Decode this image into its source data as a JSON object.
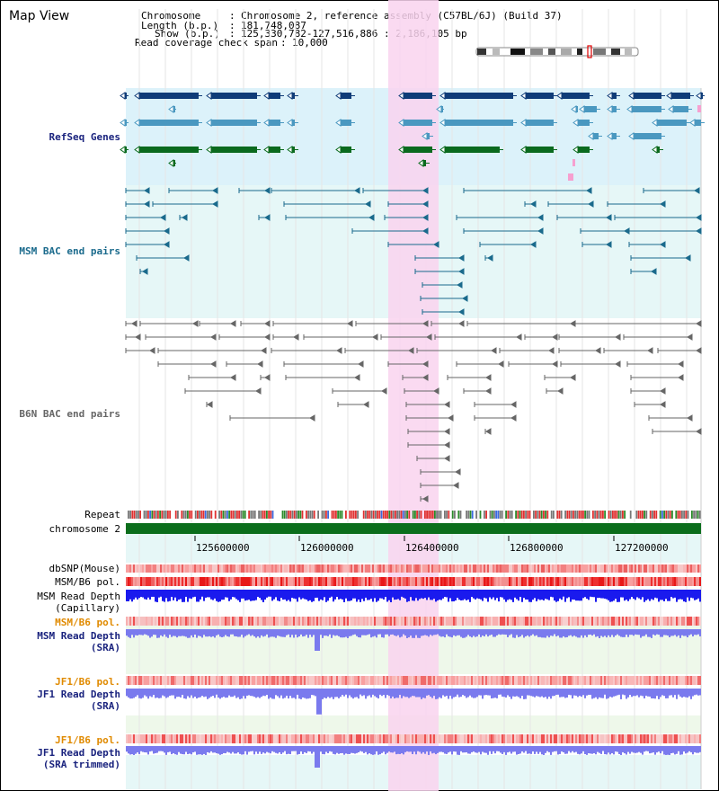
{
  "header": {
    "title": "Map View",
    "chromosome_label": "Chromosome",
    "chromosome_value": "Chromosome 2, reference assembly (C57BL/6J) (Build 37)",
    "length_label": "Length (b.p.)",
    "length_value": "181,748,087",
    "show_label": "Show (b.p.)",
    "show_value": "125,330,782-127,516,886 : 2,186,105 bp",
    "coverage_label": "Read coverage check span",
    "coverage_value": "10,000"
  },
  "tracks": {
    "refseq": "RefSeq Genes",
    "msm_bac": "MSM BAC end pairs",
    "b6n_bac": "B6N BAC end pairs",
    "repeat": "Repeat",
    "chromosome": "chromosome 2",
    "dbsnp": "dbSNP(Mouse)",
    "msm_b6_pol": "MSM/B6 pol.",
    "msm_depth_cap_1": "MSM Read Depth",
    "msm_depth_cap_2": "(Capillary)",
    "msm_b6_pol_sra": "MSM/B6 pol.",
    "msm_depth_sra_1": "MSM Read Depth",
    "msm_depth_sra_2": "(SRA)",
    "jf1_b6_pol": "JF1/B6 pol.",
    "jf1_depth_1": "JF1 Read Depth",
    "jf1_depth_2": "(SRA)",
    "jf1_b6_pol_trim": "JF1/B6 pol.",
    "jf1_depth_trim_1": "JF1 Read Depth",
    "jf1_depth_trim_2": "(SRA trimmed)"
  },
  "axis": {
    "ticks": [
      "125600000",
      "126000000",
      "126400000",
      "126800000",
      "127200000"
    ]
  },
  "colors": {
    "refseq_bg": "#dcf2fa",
    "track_bg": "#e6f7f7",
    "highlight": "#f9d4ee",
    "dark_blue": "#0f3c78",
    "mid_blue": "#4a98c0",
    "green": "#0a6a1e",
    "bac_teal": "#1a6a8c",
    "b6n_gray": "#666666",
    "label_blue": "#1a237e",
    "label_teal": "#1a6a8c",
    "label_orange": "#e08a00",
    "depth_blue": "#1a1aee",
    "depth_light": "#7a7aee"
  }
}
